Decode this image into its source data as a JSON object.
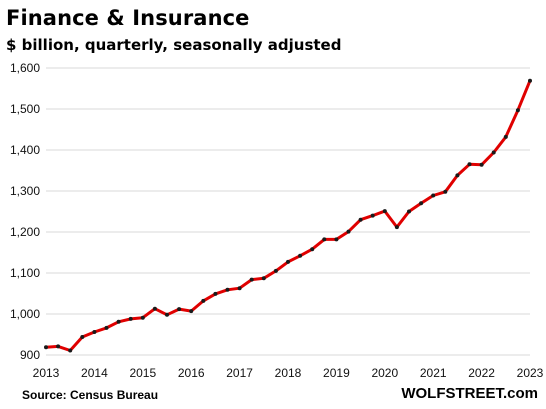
{
  "header": {
    "title": "Finance & Insurance",
    "subtitle": "$ billion, quarterly, seasonally adjusted"
  },
  "footer": {
    "source": "Source: Census Bureau",
    "brand": "WOLFSTREET.com"
  },
  "colors": {
    "line": "#e00000",
    "marker": "#1a1a1a",
    "grid": "#d9d9d9"
  },
  "chart_data": {
    "type": "line",
    "title": "Finance & Insurance",
    "subtitle": "$ billion, quarterly, seasonally adjusted",
    "xlabel": "",
    "ylabel": "",
    "xlim": [
      2013,
      2023
    ],
    "ylim": [
      900,
      1600
    ],
    "grid": true,
    "x_ticks": [
      "2013",
      "2014",
      "2015",
      "2016",
      "2017",
      "2018",
      "2019",
      "2020",
      "2021",
      "2022",
      "2023"
    ],
    "y_ticks": [
      "900",
      "1,000",
      "1,100",
      "1,200",
      "1,300",
      "1,400",
      "1,500",
      "1,600"
    ],
    "x_tick_values": [
      2013,
      2014,
      2015,
      2016,
      2017,
      2018,
      2019,
      2020,
      2021,
      2022,
      2023
    ],
    "y_tick_values": [
      900,
      1000,
      1100,
      1200,
      1300,
      1400,
      1500,
      1600
    ],
    "x": [
      "2013-Q1",
      "2013-Q2",
      "2013-Q3",
      "2013-Q4",
      "2014-Q1",
      "2014-Q2",
      "2014-Q3",
      "2014-Q4",
      "2015-Q1",
      "2015-Q2",
      "2015-Q3",
      "2015-Q4",
      "2016-Q1",
      "2016-Q2",
      "2016-Q3",
      "2016-Q4",
      "2017-Q1",
      "2017-Q2",
      "2017-Q3",
      "2017-Q4",
      "2018-Q1",
      "2018-Q2",
      "2018-Q3",
      "2018-Q4",
      "2019-Q1",
      "2019-Q2",
      "2019-Q3",
      "2019-Q4",
      "2020-Q1",
      "2020-Q2",
      "2020-Q3",
      "2020-Q4",
      "2021-Q1",
      "2021-Q2",
      "2021-Q3",
      "2021-Q4",
      "2022-Q1",
      "2022-Q2",
      "2022-Q3",
      "2022-Q4",
      "2023-Q1"
    ],
    "series": [
      {
        "values": [
          919,
          921,
          911,
          944,
          956,
          966,
          981,
          988,
          991,
          1013,
          998,
          1012,
          1007,
          1032,
          1049,
          1059,
          1063,
          1084,
          1087,
          1105,
          1127,
          1142,
          1158,
          1182,
          1182,
          1201,
          1230,
          1240,
          1251,
          1212,
          1250,
          1270,
          1289,
          1298,
          1338,
          1365,
          1364,
          1394,
          1432,
          1497,
          1569
        ]
      }
    ]
  }
}
